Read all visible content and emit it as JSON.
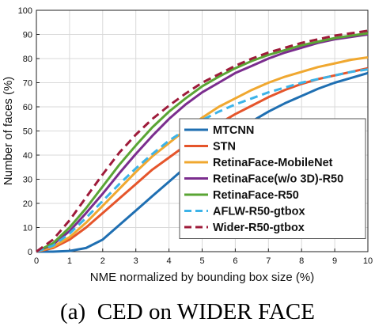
{
  "chart_data": {
    "type": "line",
    "title": "",
    "caption": "(a)  CED on WIDER FACE",
    "xlabel": "NME normalized by bounding box size (%)",
    "ylabel": "Number of faces (%)",
    "xlim": [
      0,
      10
    ],
    "ylim": [
      0,
      100
    ],
    "xticks": [
      0,
      1,
      2,
      3,
      4,
      5,
      6,
      7,
      8,
      9,
      10
    ],
    "yticks": [
      0,
      10,
      20,
      30,
      40,
      50,
      60,
      70,
      80,
      90,
      100
    ],
    "grid": true,
    "legend_position": "lower-right",
    "x": [
      0,
      0.5,
      1,
      1.5,
      2,
      2.5,
      3,
      3.5,
      4,
      4.5,
      5,
      5.5,
      6,
      6.5,
      7,
      7.5,
      8,
      8.5,
      9,
      9.5,
      10
    ],
    "series": [
      {
        "name": "MTCNN",
        "color": "#1f6fb2",
        "dash": "solid",
        "values": [
          0,
          0,
          0.3,
          1.5,
          5,
          11,
          17,
          23,
          29,
          35,
          40,
          45,
          49.5,
          54,
          58,
          61.5,
          64.5,
          67.5,
          70,
          72,
          74
        ]
      },
      {
        "name": "STN",
        "color": "#e5552b",
        "dash": "solid",
        "values": [
          0,
          1.5,
          5,
          10,
          16,
          22,
          28,
          34,
          39,
          44,
          48.5,
          53,
          57,
          60.5,
          64,
          67,
          69.5,
          71.5,
          73,
          74.5,
          76
        ]
      },
      {
        "name": "RetinaFace-MobileNet",
        "color": "#f0a830",
        "dash": "solid",
        "values": [
          0,
          2,
          6,
          12,
          19,
          26,
          33,
          39.5,
          45,
          50.5,
          55.5,
          60,
          63.5,
          67,
          70,
          72.5,
          74.5,
          76.5,
          78,
          79.5,
          80.5
        ]
      },
      {
        "name": "RetinaFace(w/o 3D)-R50",
        "color": "#7b2d8e",
        "dash": "solid",
        "values": [
          0,
          3,
          8.5,
          16,
          24,
          32.5,
          40.5,
          48,
          55,
          61,
          66,
          70,
          74,
          77,
          80,
          82.5,
          84.5,
          86.5,
          88,
          89,
          90
        ]
      },
      {
        "name": "RetinaFace-R50",
        "color": "#5aa534",
        "dash": "solid",
        "values": [
          0,
          3.5,
          10,
          18,
          27,
          36,
          44,
          51.5,
          58,
          63.5,
          68.5,
          72.5,
          76,
          79,
          81.5,
          83.5,
          85.5,
          87,
          88.5,
          89.5,
          90.5
        ]
      },
      {
        "name": "AFLW-R50-gtbox",
        "color": "#3cb3e8",
        "dash": "dashed",
        "values": [
          0,
          2.5,
          7.5,
          14,
          21,
          28,
          34.5,
          40.5,
          46,
          50.5,
          54.5,
          58,
          61,
          63.5,
          66,
          68,
          70,
          71.5,
          73,
          74.5,
          75.5
        ]
      },
      {
        "name": "Wider-R50-gtbox",
        "color": "#9e1b3a",
        "dash": "dashed",
        "values": [
          0,
          5,
          13,
          22.5,
          32,
          41,
          48.5,
          55,
          60.5,
          65.5,
          70,
          73.5,
          77,
          80,
          82.5,
          84.5,
          86.5,
          88,
          89.5,
          90.5,
          91.5
        ]
      }
    ]
  }
}
